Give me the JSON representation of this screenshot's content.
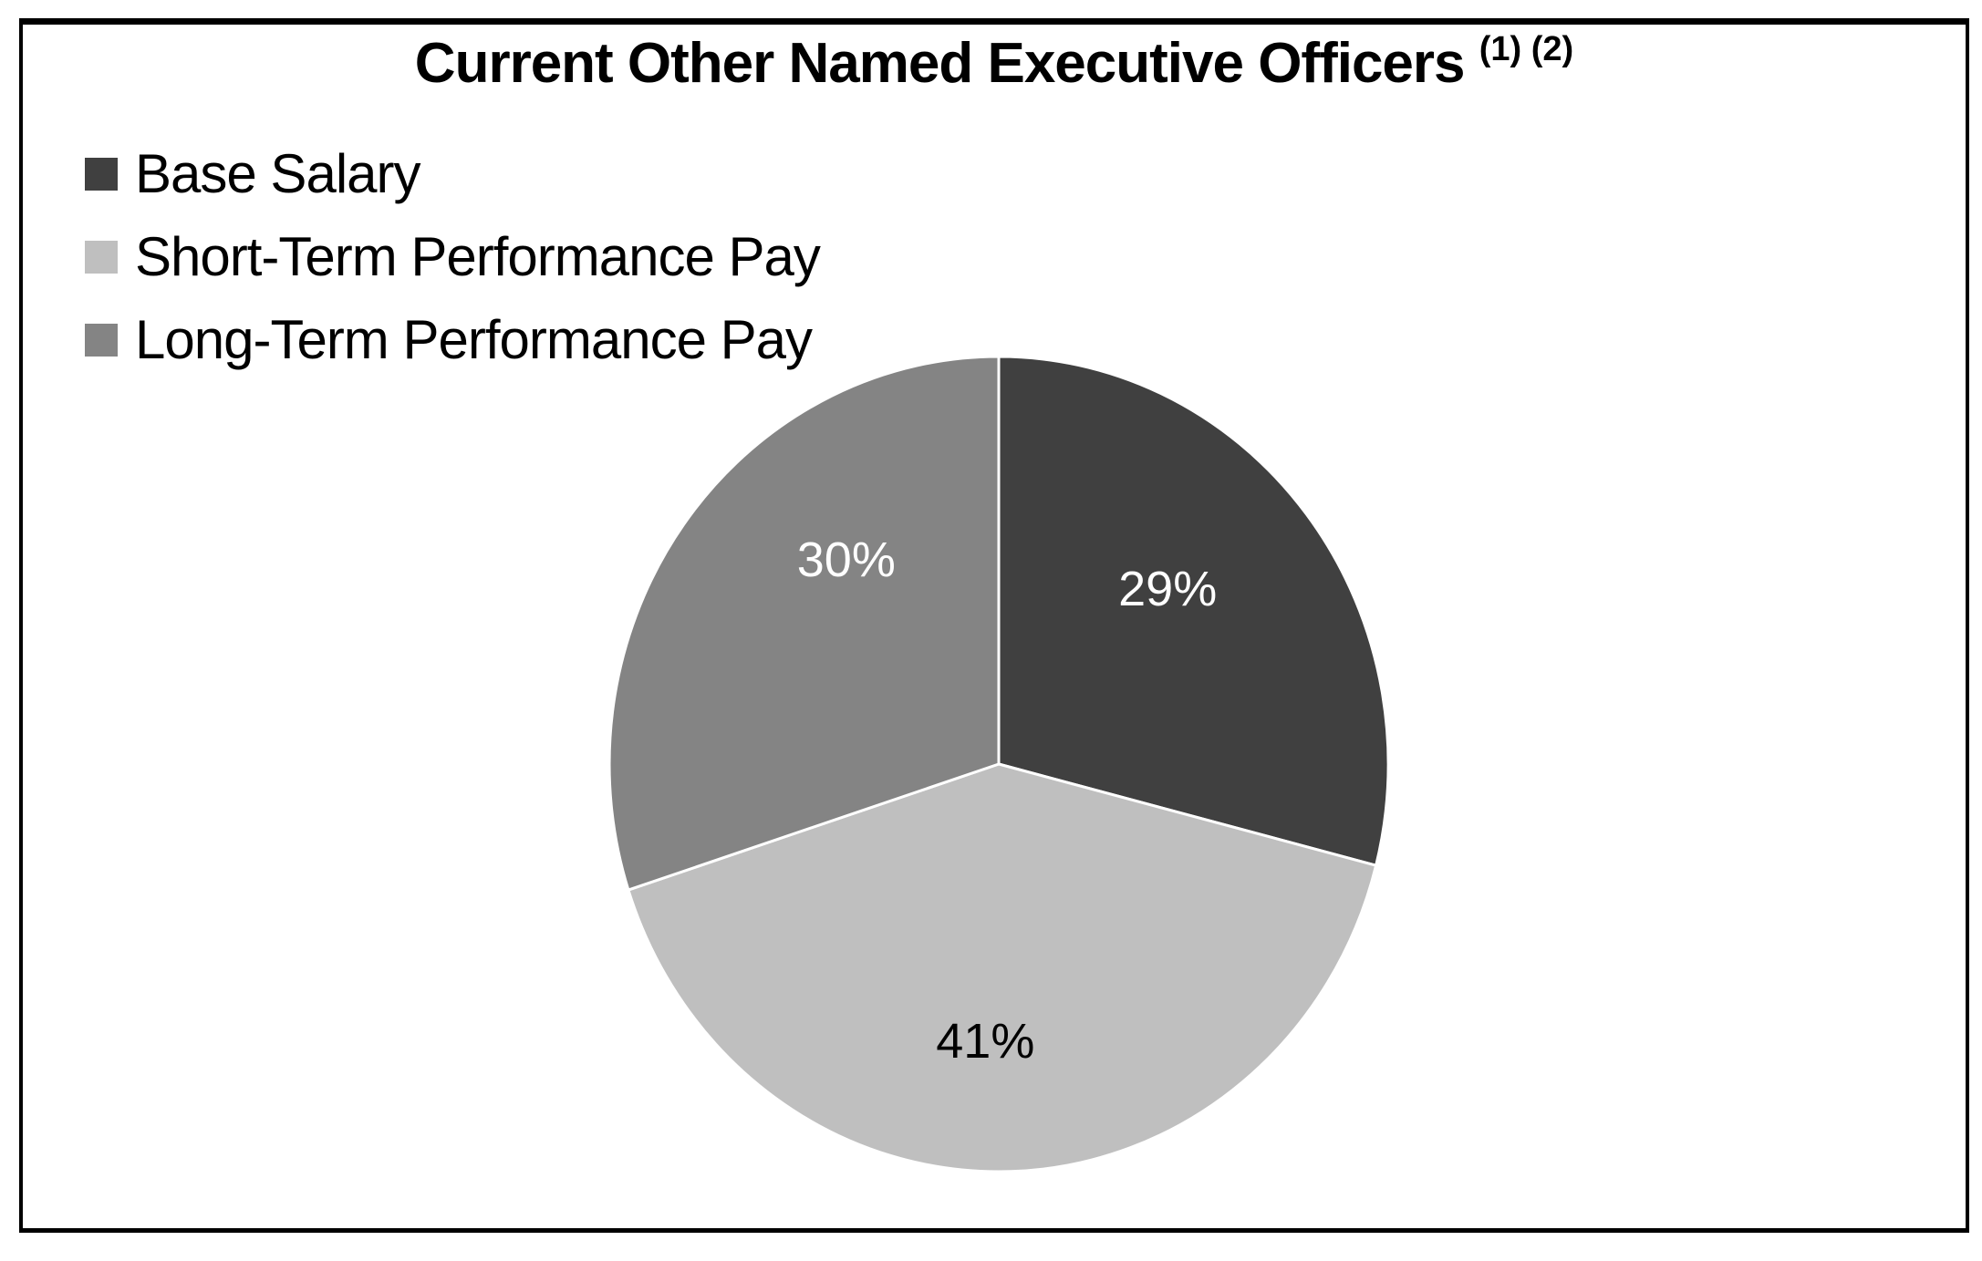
{
  "page": {
    "background_color": "#FFFFFF",
    "border_color": "#000000"
  },
  "title": {
    "text": "Current Other Named Executive Officers",
    "superscript": "(1) (2)"
  },
  "legend": {
    "position": "top-left",
    "items": [
      {
        "label": "Base Salary",
        "color": "#404040"
      },
      {
        "label": "Short-Term Performance Pay",
        "color": "#BFBFBF"
      },
      {
        "label": "Long-Term Performance Pay",
        "color": "#848484"
      }
    ]
  },
  "chart_data": {
    "type": "pie",
    "title": "Current Other Named Executive Officers (1) (2)",
    "start_angle_deg": 0,
    "direction": "clockwise",
    "slice_border_color": "#FFFFFF",
    "legend_position": "top-left",
    "segments": [
      {
        "label": "Base Salary",
        "value": 29,
        "display_label": "29%",
        "color": "#404040",
        "text_color": "#FFFFFF"
      },
      {
        "label": "Short-Term Performance Pay",
        "value": 41,
        "display_label": "41%",
        "color": "#BFBFBF",
        "text_color": "#000000"
      },
      {
        "label": "Long-Term Performance Pay",
        "value": 30,
        "display_label": "30%",
        "color": "#848484",
        "text_color": "#FFFFFF"
      }
    ]
  }
}
